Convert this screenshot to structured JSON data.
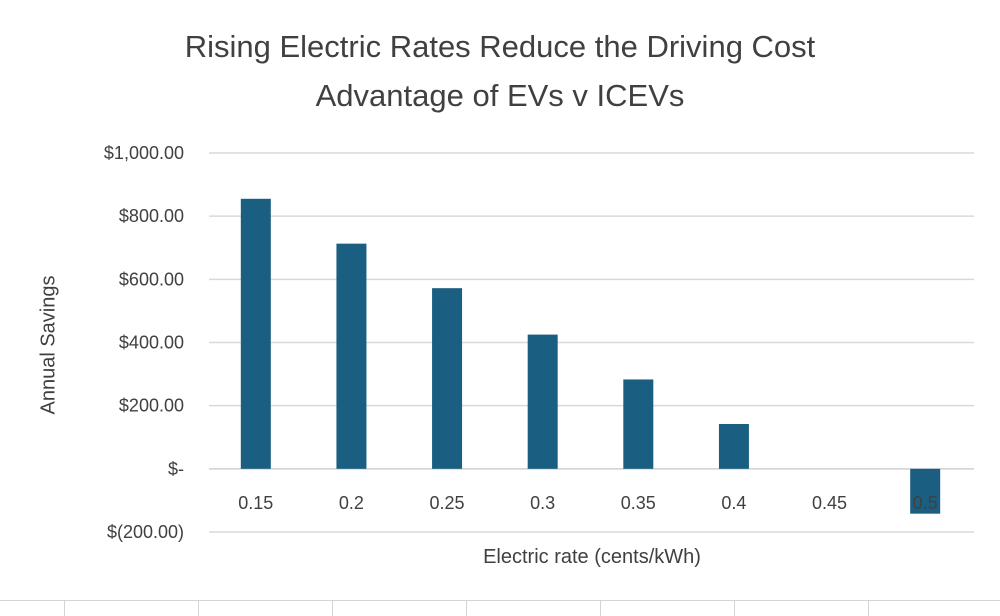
{
  "chart_data": {
    "type": "bar",
    "title": "Rising Electric Rates Reduce the Driving Cost Advantage of EVs v ICEVs",
    "title_lines": [
      "Rising Electric Rates Reduce the Driving Cost",
      "Advantage of EVs v ICEVs"
    ],
    "xlabel": "Electric rate (cents/kWh)",
    "ylabel": "Annual Savings",
    "categories": [
      "0.15",
      "0.2",
      "0.25",
      "0.3",
      "0.35",
      "0.4",
      "0.45",
      "0.5"
    ],
    "values": [
      855,
      713,
      572,
      425,
      283,
      142,
      0,
      -142
    ],
    "ylim": [
      -200,
      1000
    ],
    "yticks": [
      1000,
      800,
      600,
      400,
      200,
      0,
      -200
    ],
    "ytick_labels": [
      "$1,000.00",
      "$800.00",
      "$600.00",
      "$400.00",
      "$200.00",
      "$-",
      "$(200.00)"
    ],
    "grid": true,
    "legend": "none",
    "bar_color": "#1a5e82",
    "gridline_color": "#d9d9d9",
    "text_color": "#404040"
  }
}
